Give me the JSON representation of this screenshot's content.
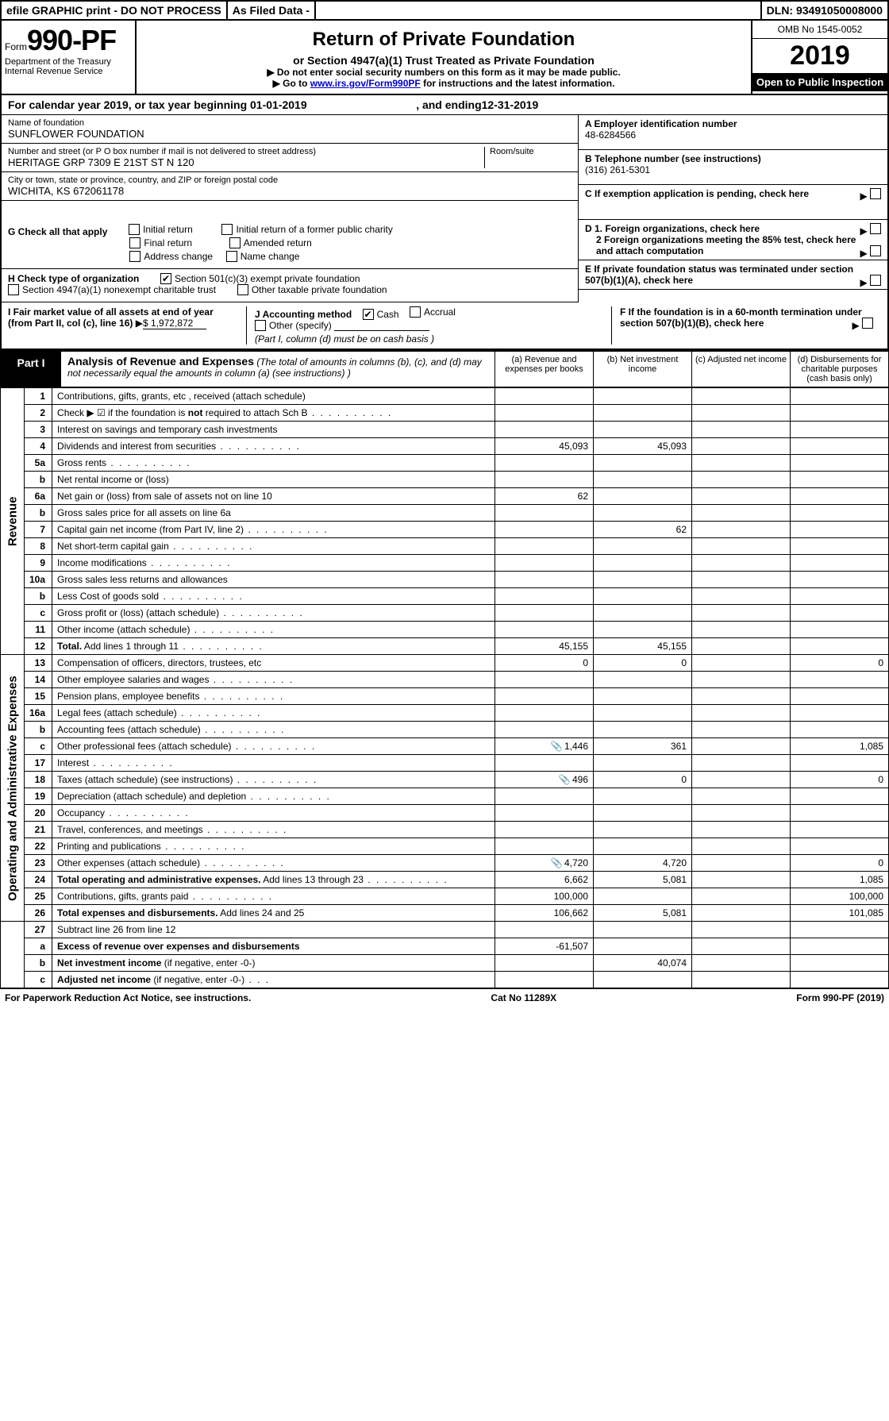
{
  "topbar": {
    "efile": "efile GRAPHIC print - DO NOT PROCESS",
    "asfiled": "As Filed Data -",
    "dln_label": "DLN:",
    "dln": "93491050008000"
  },
  "header": {
    "form_prefix": "Form",
    "form_no": "990-PF",
    "dept": "Department of the Treasury",
    "irs": "Internal Revenue Service",
    "title": "Return of Private Foundation",
    "subtitle": "or Section 4947(a)(1) Trust Treated as Private Foundation",
    "note1": "▶ Do not enter social security numbers on this form as it may be made public.",
    "note2_pre": "▶ Go to ",
    "note2_link": "www.irs.gov/Form990PF",
    "note2_post": " for instructions and the latest information.",
    "omb": "OMB No 1545-0052",
    "year": "2019",
    "open": "Open to Public Inspection"
  },
  "calyear": {
    "text_pre": "For calendar year 2019, or tax year beginning ",
    "begin": "01-01-2019",
    "mid": " , and ending ",
    "end": "12-31-2019"
  },
  "foundation": {
    "name_label": "Name of foundation",
    "name": "SUNFLOWER FOUNDATION",
    "addr_label": "Number and street (or P O  box number if mail is not delivered to street address)",
    "addr": "HERITAGE GRP 7309 E 21ST ST N 120",
    "room_label": "Room/suite",
    "city_label": "City or town, state or province, country, and ZIP or foreign postal code",
    "city": "WICHITA, KS  672061178"
  },
  "right": {
    "A_label": "A Employer identification number",
    "A_val": "48-6284566",
    "B_label": "B Telephone number (see instructions)",
    "B_val": "(316) 261-5301",
    "C_label": "C If exemption application is pending, check here",
    "D1": "D 1. Foreign organizations, check here",
    "D2": "2 Foreign organizations meeting the 85% test, check here and attach computation",
    "E": "E  If private foundation status was terminated under section 507(b)(1)(A), check here",
    "F": "F  If the foundation is in a 60-month termination under section 507(b)(1)(B), check here"
  },
  "G": {
    "label": "G Check all that apply",
    "opts": [
      "Initial return",
      "Initial return of a former public charity",
      "Final return",
      "Amended return",
      "Address change",
      "Name change"
    ]
  },
  "H": {
    "label": "H Check type of organization",
    "opt1": "Section 501(c)(3) exempt private foundation",
    "opt2": "Section 4947(a)(1) nonexempt charitable trust",
    "opt3": "Other taxable private foundation"
  },
  "I": {
    "label": "I Fair market value of all assets at end of year (from Part II, col  (c), line 16)",
    "val": "$  1,972,872"
  },
  "J": {
    "label": "J Accounting method",
    "cash": "Cash",
    "accrual": "Accrual",
    "other": "Other (specify)",
    "note": "(Part I, column (d) must be on cash basis )"
  },
  "part1": {
    "label": "Part I",
    "title": "Analysis of Revenue and Expenses",
    "title_note": " (The total of amounts in columns (b), (c), and (d) may not necessarily equal the amounts in column (a) (see instructions) )",
    "col_a": "(a)   Revenue and expenses per books",
    "col_b": "(b) Net investment income",
    "col_c": "(c) Adjusted net income",
    "col_d": "(d) Disbursements for charitable purposes (cash basis only)"
  },
  "rotlabels": {
    "revenue": "Revenue",
    "expenses": "Operating and Administrative Expenses"
  },
  "rows": [
    {
      "ln": "1",
      "desc": "Contributions, gifts, grants, etc , received (attach schedule)"
    },
    {
      "ln": "2",
      "desc": "Check ▶ ☑ if the foundation is <b>not</b> required to attach Sch B",
      "dots": true,
      "raw": true
    },
    {
      "ln": "3",
      "desc": "Interest on savings and temporary cash investments"
    },
    {
      "ln": "4",
      "desc": "Dividends and interest from securities",
      "dots": true,
      "a": "45,093",
      "b": "45,093"
    },
    {
      "ln": "5a",
      "desc": "Gross rents",
      "dots": true
    },
    {
      "ln": "b",
      "desc": "Net rental income or (loss)"
    },
    {
      "ln": "6a",
      "desc": "Net gain or (loss) from sale of assets not on line 10",
      "a": "62"
    },
    {
      "ln": "b",
      "desc": "Gross sales price for all assets on line 6a"
    },
    {
      "ln": "7",
      "desc": "Capital gain net income (from Part IV, line 2)",
      "dots": true,
      "b": "62"
    },
    {
      "ln": "8",
      "desc": "Net short-term capital gain",
      "dots": true
    },
    {
      "ln": "9",
      "desc": "Income modifications",
      "dots": true
    },
    {
      "ln": "10a",
      "desc": "Gross sales less returns and allowances"
    },
    {
      "ln": "b",
      "desc": "Less  Cost of goods sold",
      "dots": true
    },
    {
      "ln": "c",
      "desc": "Gross profit or (loss) (attach schedule)",
      "dots": true
    },
    {
      "ln": "11",
      "desc": "Other income (attach schedule)",
      "dots": true
    },
    {
      "ln": "12",
      "desc": "<b>Total.</b> Add lines 1 through 11",
      "dots": true,
      "a": "45,155",
      "b": "45,155",
      "raw": true
    }
  ],
  "exp_rows": [
    {
      "ln": "13",
      "desc": "Compensation of officers, directors, trustees, etc",
      "a": "0",
      "b": "0",
      "d": "0"
    },
    {
      "ln": "14",
      "desc": "Other employee salaries and wages",
      "dots": true
    },
    {
      "ln": "15",
      "desc": "Pension plans, employee benefits",
      "dots": true
    },
    {
      "ln": "16a",
      "desc": "Legal fees (attach schedule)",
      "dots": true
    },
    {
      "ln": "b",
      "desc": "Accounting fees (attach schedule)",
      "dots": true
    },
    {
      "ln": "c",
      "desc": "Other professional fees (attach schedule)",
      "dots": true,
      "attach": true,
      "a": "1,446",
      "b": "361",
      "d": "1,085"
    },
    {
      "ln": "17",
      "desc": "Interest",
      "dots": true
    },
    {
      "ln": "18",
      "desc": "Taxes (attach schedule) (see instructions)",
      "dots": true,
      "attach": true,
      "a": "496",
      "b": "0",
      "d": "0"
    },
    {
      "ln": "19",
      "desc": "Depreciation (attach schedule) and depletion",
      "dots": true
    },
    {
      "ln": "20",
      "desc": "Occupancy",
      "dots": true
    },
    {
      "ln": "21",
      "desc": "Travel, conferences, and meetings",
      "dots": true
    },
    {
      "ln": "22",
      "desc": "Printing and publications",
      "dots": true
    },
    {
      "ln": "23",
      "desc": "Other expenses (attach schedule)",
      "dots": true,
      "attach": true,
      "a": "4,720",
      "b": "4,720",
      "d": "0"
    },
    {
      "ln": "24",
      "desc": "<b>Total operating and administrative expenses.</b> Add lines 13 through 23",
      "dots": true,
      "a": "6,662",
      "b": "5,081",
      "d": "1,085",
      "raw": true
    },
    {
      "ln": "25",
      "desc": "Contributions, gifts, grants paid",
      "dots": true,
      "a": "100,000",
      "d": "100,000"
    },
    {
      "ln": "26",
      "desc": "<b>Total expenses and disbursements.</b> Add lines 24 and 25",
      "a": "106,662",
      "b": "5,081",
      "d": "101,085",
      "raw": true
    }
  ],
  "bottom_rows": [
    {
      "ln": "27",
      "desc": "Subtract line 26 from line 12"
    },
    {
      "ln": "a",
      "desc": "<b>Excess of revenue over expenses and disbursements</b>",
      "a": "-61,507",
      "raw": true
    },
    {
      "ln": "b",
      "desc": "<b>Net investment income</b> (if negative, enter -0-)",
      "b": "40,074",
      "raw": true
    },
    {
      "ln": "c",
      "desc": "<b>Adjusted net income</b> (if negative, enter -0-)",
      "dots": true,
      "raw": true
    }
  ],
  "footer": {
    "left": "For Paperwork Reduction Act Notice, see instructions.",
    "mid": "Cat No  11289X",
    "right": "Form 990-PF (2019)"
  }
}
